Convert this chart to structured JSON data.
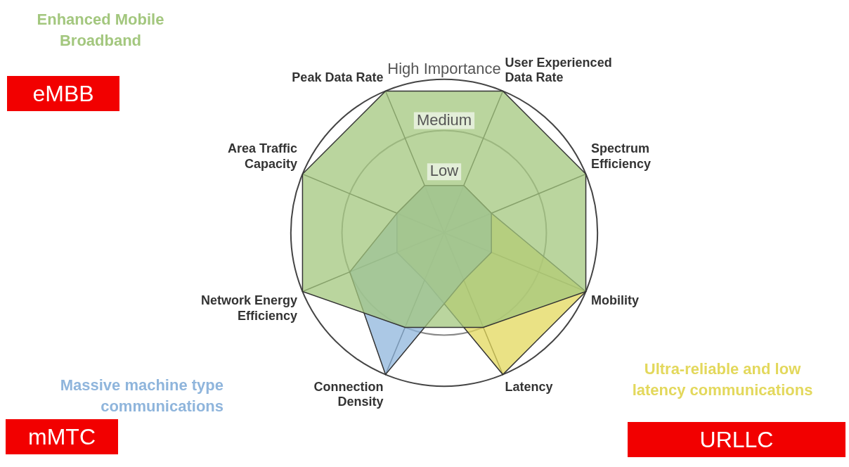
{
  "chart_data": {
    "type": "radar",
    "categories": [
      "Peak Data Rate",
      "User Experienced Data Rate",
      "Spectrum Efficiency",
      "Mobility",
      "Latency",
      "Connection Density",
      "Network Energy Efficiency",
      "Area Traffic Capacity"
    ],
    "series": [
      {
        "name": "Enhanced Mobile Broadband",
        "color": "#a3c77e",
        "values": [
          3,
          3,
          3,
          3,
          2,
          2,
          3,
          3
        ]
      },
      {
        "name": "Massive machine type communications",
        "color": "#8fb5dc",
        "values": [
          1,
          1,
          1,
          1,
          1,
          3,
          2,
          1
        ]
      },
      {
        "name": "Ultra-reliable and low latency communications",
        "color": "#e3d85c",
        "values": [
          1,
          1,
          1,
          3,
          3,
          1,
          1,
          1
        ]
      }
    ],
    "ylim": [
      0,
      3
    ],
    "yticks": [
      {
        "value": 1,
        "label": "Low"
      },
      {
        "value": 2,
        "label": "Medium"
      },
      {
        "value": 3,
        "label": "High Importance"
      }
    ],
    "annotations": [
      "eMBB",
      "mMTC",
      "URLLC"
    ]
  }
}
